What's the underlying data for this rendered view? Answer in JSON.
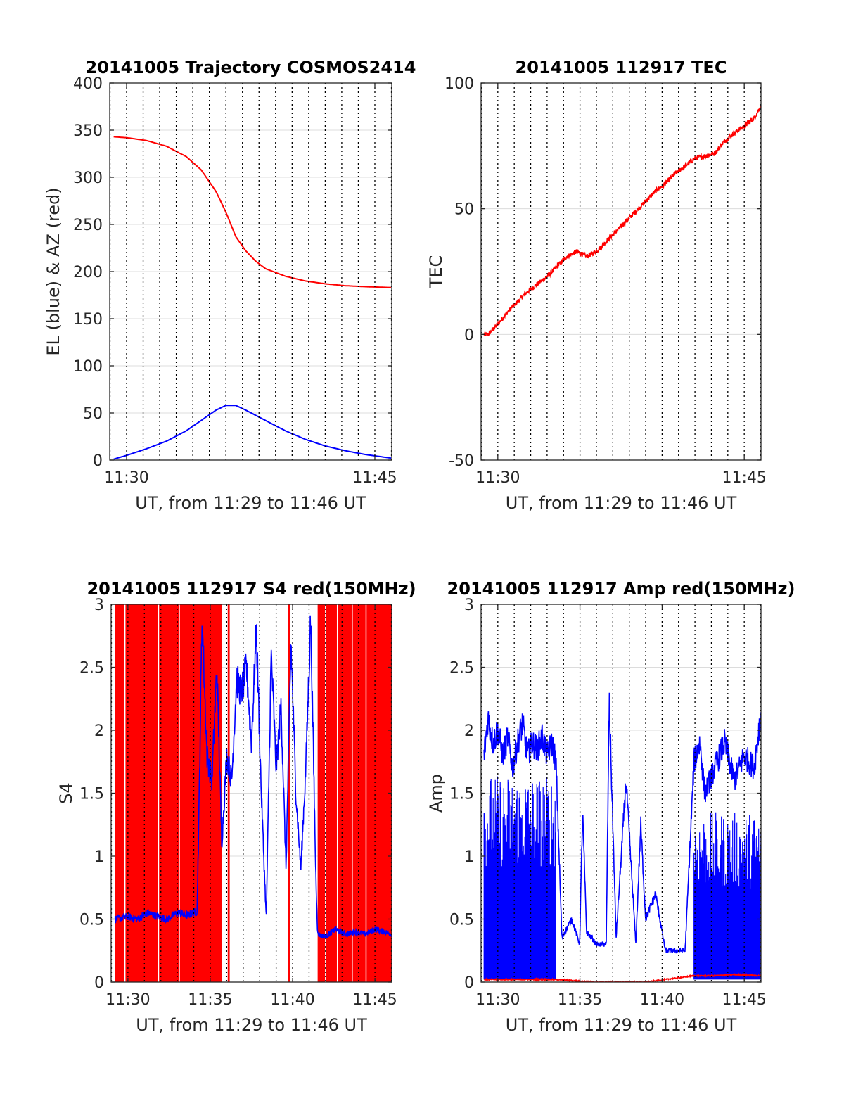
{
  "figure": {
    "panels": [
      "trajectory",
      "tec",
      "s4",
      "amp"
    ]
  },
  "colors": {
    "azimuth": "#ff0000",
    "elevation": "#0000ff",
    "red_150mhz": "#ff0000",
    "blue_400mhz": "#0000ff",
    "axes": "#262626",
    "grid_dotted": "#000000",
    "grid_solid": "#dcdcdc"
  },
  "chart_data": [
    {
      "id": "trajectory",
      "type": "line",
      "title": "20141005 Trajectory COSMOS2414",
      "xlabel": "UT, from 11:29 to 11:46 UT",
      "ylabel": "EL (blue) & AZ (red)",
      "xlim": [
        11.483,
        11.767
      ],
      "ylim": [
        0,
        400
      ],
      "xticks": [
        {
          "v": 11.5,
          "label": "11:30"
        },
        {
          "v": 11.75,
          "label": "11:45"
        }
      ],
      "yticks": [
        {
          "v": 0,
          "label": "0"
        },
        {
          "v": 50,
          "label": "50"
        },
        {
          "v": 100,
          "label": "100"
        },
        {
          "v": 150,
          "label": "150"
        },
        {
          "v": 200,
          "label": "200"
        },
        {
          "v": 250,
          "label": "250"
        },
        {
          "v": 300,
          "label": "300"
        },
        {
          "v": 350,
          "label": "350"
        },
        {
          "v": 400,
          "label": "400"
        }
      ],
      "vgrid_dotted_every_minutes": 1,
      "hgrid_solid": true,
      "series": [
        {
          "color": "#ff0000",
          "x": [
            11.487,
            11.5,
            11.52,
            11.54,
            11.56,
            11.575,
            11.59,
            11.6,
            11.61,
            11.62,
            11.63,
            11.64,
            11.66,
            11.68,
            11.7,
            11.72,
            11.74,
            11.767
          ],
          "y": [
            343,
            342,
            339,
            333,
            322,
            308,
            285,
            263,
            237,
            222,
            211,
            203,
            195,
            190,
            187,
            185,
            184,
            183
          ]
        },
        {
          "color": "#0000ff",
          "x": [
            11.487,
            11.5,
            11.52,
            11.54,
            11.56,
            11.575,
            11.59,
            11.6,
            11.61,
            11.62,
            11.64,
            11.66,
            11.68,
            11.7,
            11.72,
            11.74,
            11.767
          ],
          "y": [
            1,
            5,
            12,
            20,
            31,
            42,
            53,
            58,
            58,
            53,
            42,
            31,
            22,
            15,
            10,
            6,
            2
          ]
        }
      ]
    },
    {
      "id": "tec",
      "type": "line",
      "title": "20141005 112917 TEC",
      "xlabel": "UT, from 11:29 to 11:46 UT",
      "ylabel": "TEC",
      "xlim": [
        11.483,
        11.767
      ],
      "ylim": [
        -50,
        100
      ],
      "xticks": [
        {
          "v": 11.5,
          "label": "11:30"
        },
        {
          "v": 11.75,
          "label": "11:45"
        }
      ],
      "yticks": [
        {
          "v": -50,
          "label": "-50"
        },
        {
          "v": 0,
          "label": "0"
        },
        {
          "v": 50,
          "label": "50"
        },
        {
          "v": 100,
          "label": "100"
        }
      ],
      "vgrid_dotted_every_minutes": 1,
      "hgrid_solid": true,
      "series": [
        {
          "color": "#ff0000",
          "x": [
            11.486,
            11.49,
            11.5,
            11.51,
            11.52,
            11.53,
            11.54,
            11.55,
            11.56,
            11.57,
            11.58,
            11.59,
            11.6,
            11.61,
            11.62,
            11.63,
            11.64,
            11.65,
            11.66,
            11.67,
            11.68,
            11.69,
            11.7,
            11.71,
            11.72,
            11.73,
            11.74,
            11.75,
            11.76,
            11.767
          ],
          "y": [
            0,
            0,
            4,
            9,
            13,
            17,
            20,
            23,
            27,
            31,
            33,
            31,
            33,
            37,
            41,
            45,
            49,
            53,
            57,
            60,
            64,
            67,
            70,
            71,
            72,
            77,
            80,
            83,
            86,
            91
          ]
        }
      ]
    },
    {
      "id": "s4",
      "type": "line",
      "title": "20141005 112917 S4 red(150MHz)",
      "xlabel": "UT, from 11:29 to 11:46 UT",
      "ylabel": "S4",
      "xlim": [
        11.483,
        11.767
      ],
      "ylim": [
        0,
        3
      ],
      "xticks": [
        {
          "v": 11.5,
          "label": "11:30"
        },
        {
          "v": 11.5833,
          "label": "11:35"
        },
        {
          "v": 11.6667,
          "label": "11:40"
        },
        {
          "v": 11.75,
          "label": "11:45"
        }
      ],
      "yticks": [
        {
          "v": 0,
          "label": "0"
        },
        {
          "v": 0.5,
          "label": "0.5"
        },
        {
          "v": 1,
          "label": "1"
        },
        {
          "v": 1.5,
          "label": "1.5"
        },
        {
          "v": 2,
          "label": "2"
        },
        {
          "v": 2.5,
          "label": "2.5"
        },
        {
          "v": 3,
          "label": "3"
        }
      ],
      "vgrid_dotted_every_minutes": 1,
      "hgrid_solid": true,
      "red_fill_intervals": [
        [
          11.487,
          11.571
        ],
        [
          11.571,
          11.595
        ],
        [
          11.601,
          11.603
        ],
        [
          11.662,
          11.664
        ],
        [
          11.692,
          11.767
        ]
      ],
      "red_gaps": [
        11.497,
        11.531,
        11.552,
        11.7,
        11.712,
        11.727,
        11.741
      ],
      "series": [
        {
          "color": "#0000ff",
          "x": [
            11.487,
            11.5,
            11.51,
            11.52,
            11.53,
            11.54,
            11.55,
            11.56,
            11.57,
            11.572,
            11.575,
            11.58,
            11.585,
            11.59,
            11.595,
            11.6,
            11.605,
            11.61,
            11.615,
            11.62,
            11.625,
            11.63,
            11.635,
            11.64,
            11.645,
            11.65,
            11.655,
            11.66,
            11.665,
            11.67,
            11.675,
            11.68,
            11.685,
            11.69,
            11.692,
            11.7,
            11.71,
            11.72,
            11.73,
            11.74,
            11.75,
            11.767
          ],
          "y": [
            0.5,
            0.52,
            0.5,
            0.55,
            0.52,
            0.5,
            0.55,
            0.53,
            0.56,
            1.4,
            2.9,
            1.8,
            1.6,
            2.5,
            1.1,
            1.8,
            1.6,
            2.4,
            2.3,
            2.5,
            1.9,
            2.8,
            1.5,
            0.5,
            2.6,
            1.7,
            2.2,
            0.9,
            2.7,
            1.5,
            0.9,
            1.7,
            2.9,
            0.9,
            0.38,
            0.36,
            0.42,
            0.38,
            0.4,
            0.38,
            0.42,
            0.38
          ]
        }
      ]
    },
    {
      "id": "amp",
      "type": "line",
      "title": "20141005 112917 Amp red(150MHz)",
      "xlabel": "UT, from 11:29 to 11:46 UT",
      "ylabel": "Amp",
      "xlim": [
        11.483,
        11.767
      ],
      "ylim": [
        0,
        3
      ],
      "xticks": [
        {
          "v": 11.5,
          "label": "11:30"
        },
        {
          "v": 11.5833,
          "label": "11:35"
        },
        {
          "v": 11.6667,
          "label": "11:40"
        },
        {
          "v": 11.75,
          "label": "11:45"
        }
      ],
      "yticks": [
        {
          "v": 0,
          "label": "0"
        },
        {
          "v": 0.5,
          "label": "0.5"
        },
        {
          "v": 1,
          "label": "1"
        },
        {
          "v": 1.5,
          "label": "1.5"
        },
        {
          "v": 2,
          "label": "2"
        },
        {
          "v": 2.5,
          "label": "2.5"
        },
        {
          "v": 3,
          "label": "3"
        }
      ],
      "vgrid_dotted_every_minutes": 1,
      "hgrid_solid": true,
      "blue_dense_blocks": [
        [
          11.486,
          11.559,
          1.65
        ],
        [
          11.699,
          11.767,
          1.35
        ]
      ],
      "series": [
        {
          "color": "#0000ff",
          "x": [
            11.486,
            11.49,
            11.495,
            11.5,
            11.505,
            11.51,
            11.515,
            11.52,
            11.525,
            11.53,
            11.535,
            11.54,
            11.545,
            11.55,
            11.555,
            11.559,
            11.565,
            11.575,
            11.583,
            11.586,
            11.59,
            11.6,
            11.61,
            11.613,
            11.62,
            11.63,
            11.64,
            11.645,
            11.65,
            11.655,
            11.66,
            11.67,
            11.68,
            11.69,
            11.699,
            11.705,
            11.71,
            11.72,
            11.73,
            11.74,
            11.75,
            11.76,
            11.767
          ],
          "y": [
            1.8,
            2.1,
            1.9,
            2.0,
            1.8,
            1.95,
            1.7,
            1.9,
            2.05,
            1.8,
            1.9,
            1.85,
            1.95,
            1.8,
            1.9,
            1.75,
            0.35,
            0.5,
            0.3,
            1.35,
            0.4,
            0.3,
            0.3,
            2.25,
            0.35,
            1.6,
            0.3,
            1.25,
            0.5,
            0.6,
            0.7,
            0.25,
            0.25,
            0.25,
            1.75,
            1.9,
            1.5,
            1.7,
            1.9,
            1.6,
            1.8,
            1.7,
            2.15
          ]
        },
        {
          "color": "#ff0000",
          "x": [
            11.486,
            11.5,
            11.52,
            11.54,
            11.559,
            11.6,
            11.65,
            11.699,
            11.72,
            11.74,
            11.767
          ],
          "y": [
            0.02,
            0.02,
            0.02,
            0.02,
            0.02,
            0.0,
            0.0,
            0.05,
            0.05,
            0.06,
            0.05
          ]
        }
      ]
    }
  ]
}
